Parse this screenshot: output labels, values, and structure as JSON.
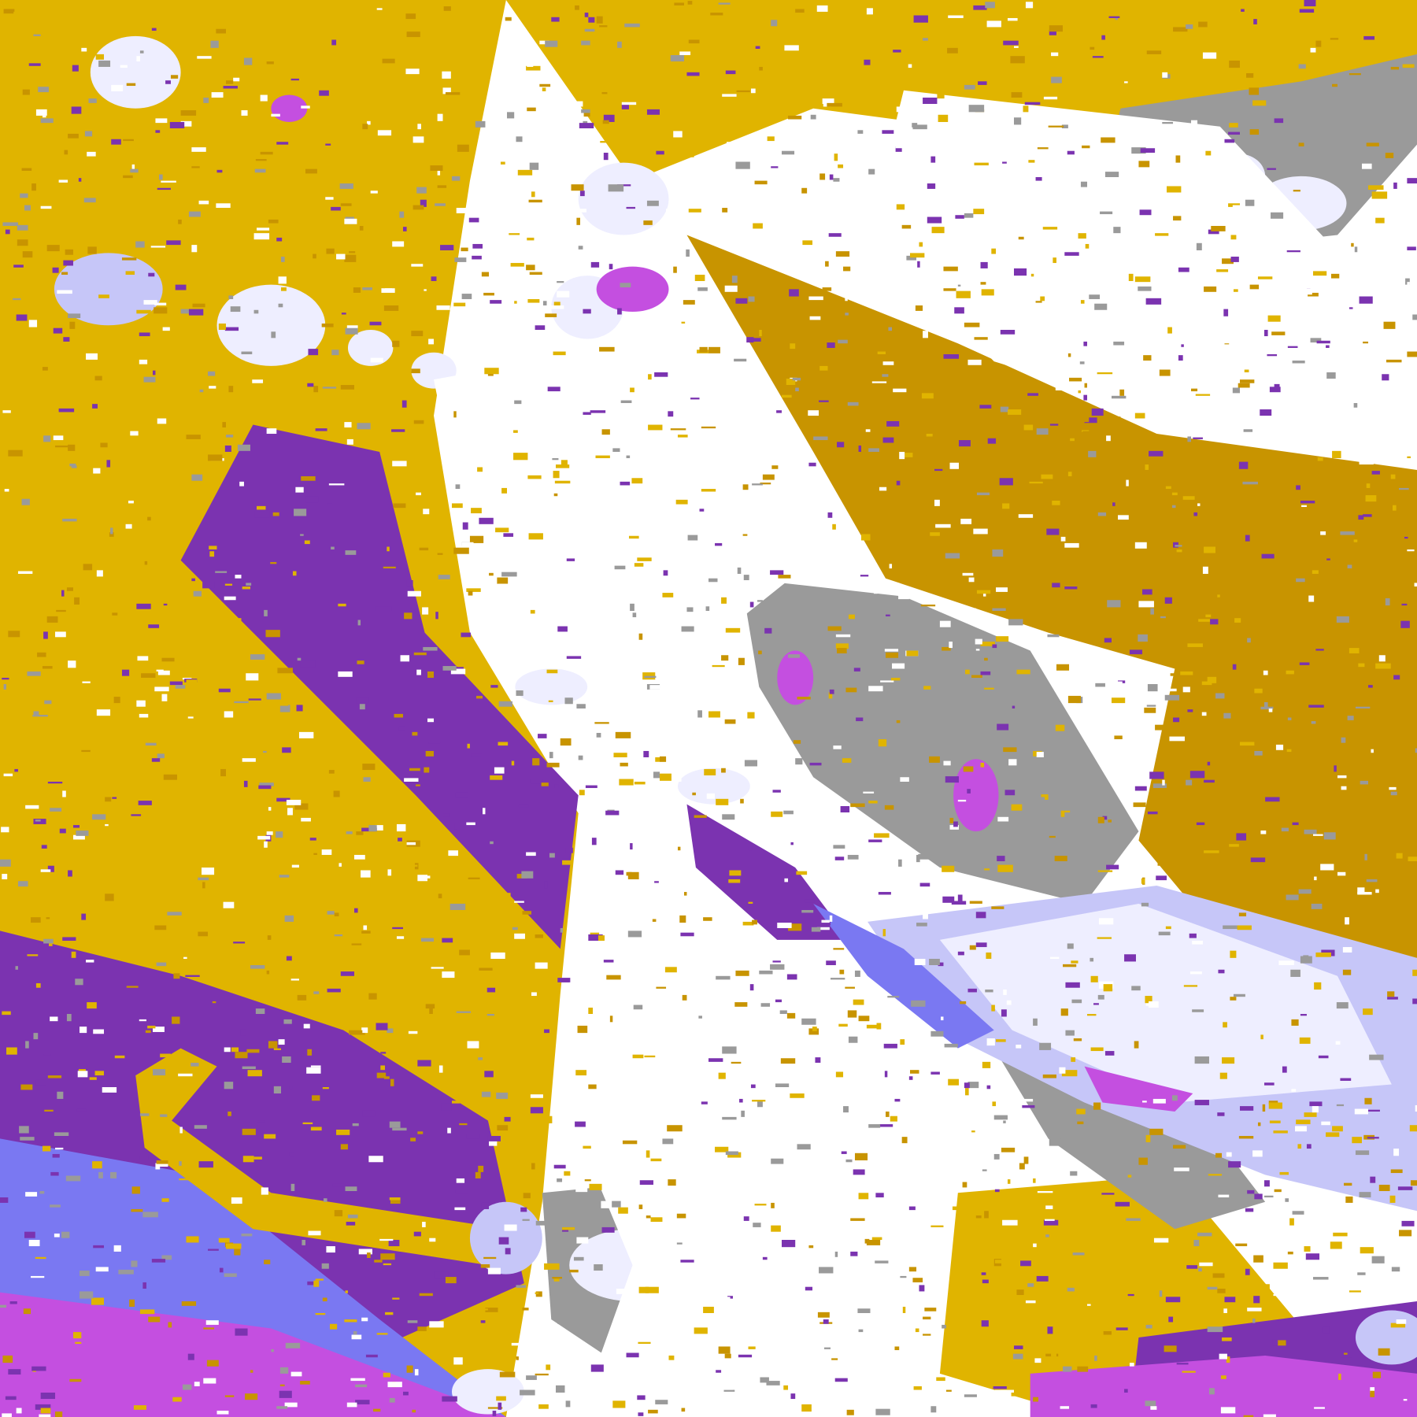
{
  "map": {
    "colors": {
      "background": "#FFFFFF",
      "gold": "#E0B400",
      "dark_gold": "#C89400",
      "purple": "#7B33B0",
      "magenta": "#C44FE0",
      "violet_blue": "#7A78F2",
      "lavender": "#C6C6F8",
      "pale": "#EEEEFF",
      "gray": "#9A9A9A"
    }
  }
}
